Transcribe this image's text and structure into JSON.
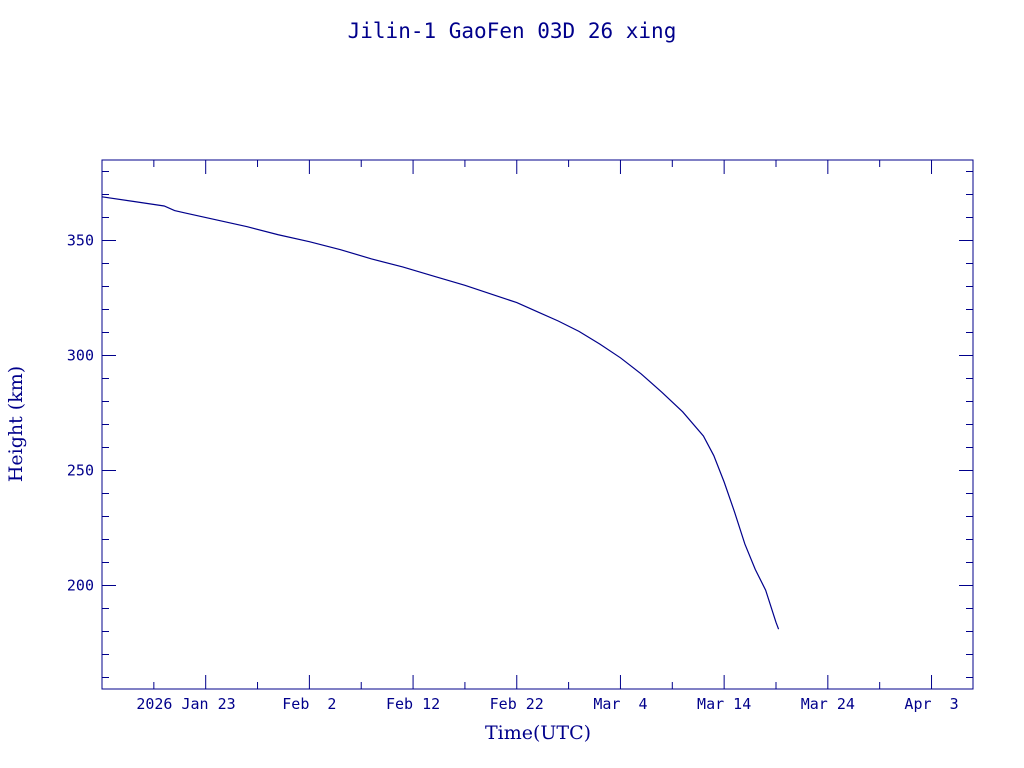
{
  "chart_data": {
    "type": "line",
    "title": "Jilin-1 GaoFen 03D 26 xing",
    "xlabel": "Time(UTC)",
    "ylabel": "Height (km)",
    "xlim": [
      "2026-01-13",
      "2026-04-07"
    ],
    "ylim": [
      155,
      385
    ],
    "x_ticks": [
      {
        "date": "2026-01-23",
        "label": "2026 Jan 23"
      },
      {
        "date": "2026-02-02",
        "label": "Feb  2"
      },
      {
        "date": "2026-02-12",
        "label": "Feb 12"
      },
      {
        "date": "2026-02-22",
        "label": "Feb 22"
      },
      {
        "date": "2026-03-04",
        "label": "Mar  4"
      },
      {
        "date": "2026-03-14",
        "label": "Mar 14"
      },
      {
        "date": "2026-03-24",
        "label": "Mar 24"
      },
      {
        "date": "2026-04-03",
        "label": "Apr  3"
      }
    ],
    "y_ticks": [
      200,
      250,
      300,
      350
    ],
    "grid": false,
    "color": "#00008b",
    "series": [
      {
        "x": [
          "2026-01-13",
          "2026-01-16",
          "2026-01-19",
          "2026-01-20",
          "2026-01-21",
          "2026-01-24",
          "2026-01-27",
          "2026-01-30",
          "2026-02-02",
          "2026-02-05",
          "2026-02-08",
          "2026-02-11",
          "2026-02-14",
          "2026-02-17",
          "2026-02-20",
          "2026-02-22",
          "2026-02-24",
          "2026-02-26",
          "2026-02-28",
          "2026-03-02",
          "2026-03-04",
          "2026-03-06",
          "2026-03-08",
          "2026-03-10",
          "2026-03-12",
          "2026-03-13",
          "2026-03-14",
          "2026-03-15",
          "2026-03-16",
          "2026-03-17",
          "2026-03-18",
          "2026-03-18T12:00",
          "2026-03-19",
          "2026-03-19T06:00"
        ],
        "y": [
          369,
          367,
          365,
          363,
          362,
          359,
          356,
          352.5,
          349.5,
          346,
          342,
          338.5,
          334.5,
          330.5,
          326,
          323,
          319,
          315,
          310.5,
          305,
          299,
          292,
          284,
          275.5,
          265,
          256.5,
          245,
          232,
          218,
          207,
          198,
          191,
          184,
          181
        ]
      }
    ]
  }
}
